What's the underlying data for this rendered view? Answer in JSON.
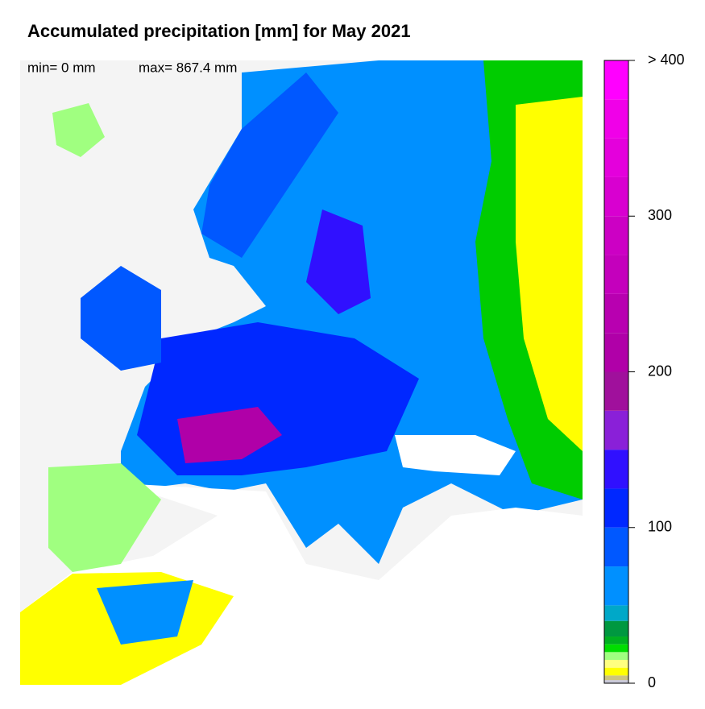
{
  "title": "Accumulated precipitation [mm] for May 2021",
  "stats": [
    "min= 0 mm",
    "max= 867.4 mm"
  ],
  "colorbar": {
    "lim": [
      0,
      400
    ],
    "ticks": [
      0,
      100,
      200,
      300,
      {
        "value": 400,
        "label": "> 400"
      }
    ],
    "bounds": [
      0,
      2,
      5,
      10,
      15,
      20,
      25,
      30,
      40,
      50,
      75,
      100,
      125,
      150,
      175,
      200,
      225,
      250,
      275,
      300,
      325,
      350,
      375,
      400
    ],
    "colors": [
      "#c8c8d8",
      "#ccc480",
      "#ffff00",
      "#ffff80",
      "#a0ff80",
      "#00dd00",
      "#00b020",
      "#009840",
      "#00a8c8",
      "#0090ff",
      "#0058ff",
      "#0028ff",
      "#3010ff",
      "#8a20d8",
      "#a0109c",
      "#b000a8",
      "#b800b0",
      "#c400bc",
      "#cc00c4",
      "#d800d0",
      "#e400dc",
      "#f000e8",
      "#ff00ff"
    ]
  }
}
